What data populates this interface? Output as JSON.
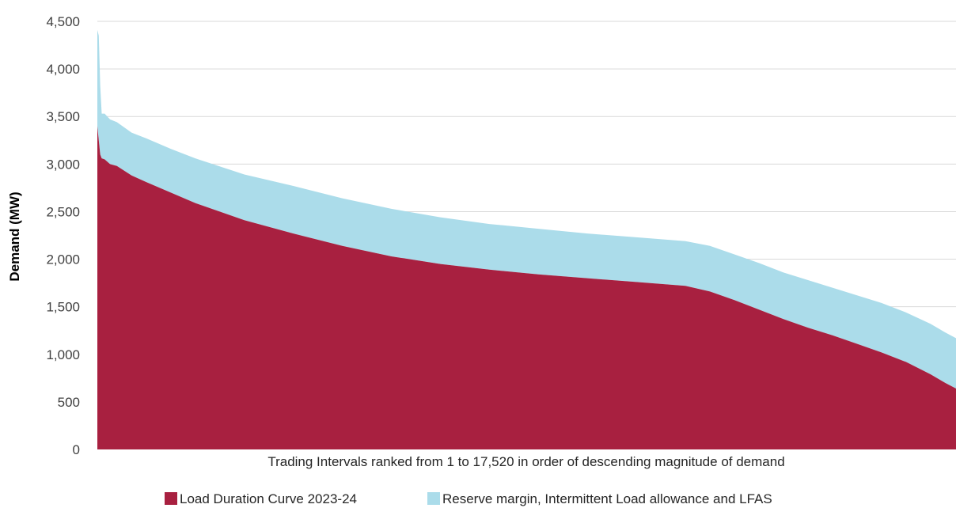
{
  "chart_data": {
    "type": "area",
    "stacked": true,
    "xlabel": "Trading Intervals ranked from 1 to 17,520 in order of descending magnitude of demand",
    "ylabel": "Demand (MW)",
    "xlim": [
      1,
      17520
    ],
    "ylim": [
      0,
      4500
    ],
    "yticks": [
      0,
      500,
      1000,
      1500,
      2000,
      2500,
      3000,
      3500,
      4000,
      4500
    ],
    "ytick_labels": [
      "0",
      "500",
      "1,000",
      "1,500",
      "2,000",
      "2,500",
      "3,000",
      "3,500",
      "4,000",
      "4,500"
    ],
    "grid": "horizontal",
    "legend_position": "bottom",
    "x": [
      1,
      30,
      60,
      90,
      150,
      260,
      400,
      700,
      1000,
      1500,
      2000,
      3000,
      4000,
      5000,
      6000,
      7000,
      8000,
      9000,
      10000,
      11000,
      12000,
      12500,
      13000,
      13500,
      14000,
      14500,
      15000,
      15500,
      16000,
      16500,
      17000,
      17300,
      17520
    ],
    "series": [
      {
        "name": "Load Duration Curve 2023-24",
        "color": "#a82040",
        "values": [
          3400,
          3250,
          3100,
          3060,
          3050,
          3000,
          2980,
          2880,
          2810,
          2700,
          2590,
          2410,
          2270,
          2140,
          2030,
          1950,
          1890,
          1840,
          1800,
          1760,
          1720,
          1660,
          1570,
          1470,
          1370,
          1280,
          1200,
          1110,
          1020,
          920,
          790,
          700,
          640
        ]
      },
      {
        "name": "Reserve margin, Intermittent Load allowance and LFAS",
        "color": "#abdcea",
        "values": [
          1010,
          1100,
          720,
          470,
          480,
          470,
          460,
          450,
          460,
          460,
          470,
          480,
          500,
          500,
          500,
          490,
          480,
          480,
          470,
          470,
          470,
          480,
          480,
          490,
          490,
          500,
          500,
          510,
          520,
          520,
          530,
          530,
          530
        ]
      }
    ]
  }
}
